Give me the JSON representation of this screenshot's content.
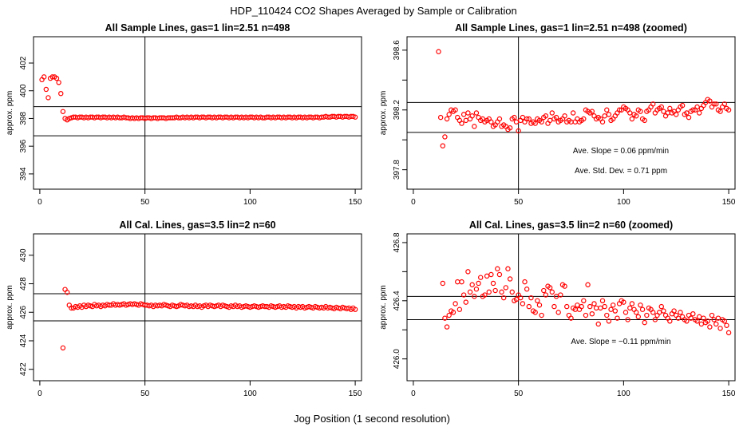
{
  "figure": {
    "title": "HDP_110424  CO2 Shapes Averaged by Sample or Calibration",
    "xlabel": "Jog Position (1 second resolution)"
  },
  "chart_data": [
    {
      "type": "scatter",
      "title": "All Sample Lines, gas=1 lin=2.51 n=498",
      "ylabel": "approx. ppm",
      "xlim": [
        -3,
        153
      ],
      "ylim": [
        392.9,
        403.9
      ],
      "xticks": [
        0,
        50,
        100,
        150
      ],
      "yticks": [
        394,
        396,
        398,
        400,
        402
      ],
      "vline_x": 50,
      "hlines": [
        398.85,
        396.75
      ],
      "marker_color": "#ff0000",
      "x": [
        1,
        2,
        3,
        4,
        5,
        6,
        7,
        8,
        9,
        10,
        11,
        12,
        13,
        14,
        15,
        16,
        17,
        18,
        19,
        20,
        21,
        22,
        23,
        24,
        25,
        26,
        27,
        28,
        29,
        30,
        31,
        32,
        33,
        34,
        35,
        36,
        37,
        38,
        39,
        40,
        41,
        42,
        43,
        44,
        45,
        46,
        47,
        48,
        49,
        50,
        51,
        52,
        53,
        54,
        55,
        56,
        57,
        58,
        59,
        60,
        61,
        62,
        63,
        64,
        65,
        66,
        67,
        68,
        69,
        70,
        71,
        72,
        73,
        74,
        75,
        76,
        77,
        78,
        79,
        80,
        81,
        82,
        83,
        84,
        85,
        86,
        87,
        88,
        89,
        90,
        91,
        92,
        93,
        94,
        95,
        96,
        97,
        98,
        99,
        100,
        101,
        102,
        103,
        104,
        105,
        106,
        107,
        108,
        109,
        110,
        111,
        112,
        113,
        114,
        115,
        116,
        117,
        118,
        119,
        120,
        121,
        122,
        123,
        124,
        125,
        126,
        127,
        128,
        129,
        130,
        131,
        132,
        133,
        134,
        135,
        136,
        137,
        138,
        139,
        140,
        141,
        142,
        143,
        144,
        145,
        146,
        147,
        148,
        149,
        150
      ],
      "y": [
        400.8,
        401.0,
        400.1,
        399.5,
        400.9,
        401.0,
        401.0,
        400.9,
        400.6,
        399.8,
        398.5,
        398.0,
        397.9,
        398.0,
        398.05,
        398.1,
        398.1,
        398.05,
        398.1,
        398.1,
        398.05,
        398.1,
        398.05,
        398.1,
        398.1,
        398.05,
        398.1,
        398.1,
        398.05,
        398.1,
        398.1,
        398.05,
        398.1,
        398.05,
        398.1,
        398.05,
        398.1,
        398.05,
        398.05,
        398.1,
        398.05,
        398.05,
        398.0,
        398.05,
        398.0,
        398.05,
        398.0,
        398.05,
        398.05,
        398.0,
        398.05,
        398.05,
        398.0,
        398.05,
        398.05,
        398.0,
        398.05,
        398.05,
        398.05,
        398.0,
        398.05,
        398.05,
        398.05,
        398.05,
        398.1,
        398.05,
        398.05,
        398.1,
        398.05,
        398.1,
        398.05,
        398.1,
        398.05,
        398.1,
        398.1,
        398.05,
        398.1,
        398.1,
        398.05,
        398.1,
        398.1,
        398.05,
        398.1,
        398.05,
        398.1,
        398.1,
        398.05,
        398.1,
        398.1,
        398.05,
        398.1,
        398.05,
        398.1,
        398.1,
        398.05,
        398.1,
        398.05,
        398.1,
        398.05,
        398.1,
        398.1,
        398.05,
        398.1,
        398.05,
        398.1,
        398.05,
        398.05,
        398.1,
        398.1,
        398.05,
        398.1,
        398.05,
        398.1,
        398.1,
        398.05,
        398.1,
        398.05,
        398.1,
        398.1,
        398.05,
        398.1,
        398.05,
        398.1,
        398.1,
        398.05,
        398.1,
        398.05,
        398.1,
        398.1,
        398.05,
        398.1,
        398.1,
        398.05,
        398.1,
        398.1,
        398.15,
        398.1,
        398.1,
        398.15,
        398.15,
        398.1,
        398.15,
        398.15,
        398.1,
        398.15,
        398.15,
        398.1,
        398.15,
        398.15,
        398.1
      ]
    },
    {
      "type": "scatter",
      "title": "All Sample Lines, gas=1 lin=2.51 n=498 (zoomed)",
      "ylabel": "approx. ppm",
      "xlim": [
        -3,
        153
      ],
      "ylim": [
        397.67,
        398.69
      ],
      "xticks": [
        0,
        50,
        100,
        150
      ],
      "yticks": [
        397.8,
        398.0,
        398.2,
        398.4,
        398.6
      ],
      "ytick_labels": [
        "397.8",
        "",
        "398.2",
        "",
        "398.6"
      ],
      "vline_x": 50,
      "hlines": [
        398.25,
        398.05
      ],
      "marker_color": "#ff0000",
      "annotations": [
        "Ave. Slope =  0.06  ppm/min",
        "Ave. Std. Dev. =  0.71  ppm"
      ],
      "x": [
        12,
        13,
        14,
        15,
        16,
        17,
        18,
        19,
        20,
        21,
        22,
        23,
        24,
        25,
        26,
        27,
        28,
        29,
        30,
        31,
        32,
        33,
        34,
        35,
        36,
        37,
        38,
        39,
        40,
        41,
        42,
        43,
        44,
        45,
        46,
        47,
        48,
        49,
        50,
        51,
        52,
        53,
        54,
        55,
        56,
        57,
        58,
        59,
        60,
        61,
        62,
        63,
        64,
        65,
        66,
        67,
        68,
        69,
        70,
        71,
        72,
        73,
        74,
        75,
        76,
        77,
        78,
        79,
        80,
        81,
        82,
        83,
        84,
        85,
        86,
        87,
        88,
        89,
        90,
        91,
        92,
        93,
        94,
        95,
        96,
        97,
        98,
        99,
        100,
        101,
        102,
        103,
        104,
        105,
        106,
        107,
        108,
        109,
        110,
        111,
        112,
        113,
        114,
        115,
        116,
        117,
        118,
        119,
        120,
        121,
        122,
        123,
        124,
        125,
        126,
        127,
        128,
        129,
        130,
        131,
        132,
        133,
        134,
        135,
        136,
        137,
        138,
        139,
        140,
        141,
        142,
        143,
        144,
        145,
        146,
        147,
        148,
        149,
        150
      ],
      "y": [
        398.59,
        398.15,
        397.96,
        398.02,
        398.14,
        398.17,
        398.2,
        398.19,
        398.2,
        398.15,
        398.13,
        398.11,
        398.17,
        398.13,
        398.18,
        398.14,
        398.16,
        398.09,
        398.18,
        398.15,
        398.13,
        398.14,
        398.12,
        398.13,
        398.14,
        398.12,
        398.09,
        398.1,
        398.12,
        398.14,
        398.09,
        398.1,
        398.09,
        398.07,
        398.08,
        398.14,
        398.15,
        398.12,
        398.06,
        398.13,
        398.15,
        398.12,
        398.14,
        398.14,
        398.11,
        398.12,
        398.11,
        398.14,
        398.13,
        398.12,
        398.15,
        398.16,
        398.11,
        398.13,
        398.18,
        398.14,
        398.15,
        398.12,
        398.13,
        398.14,
        398.16,
        398.12,
        398.13,
        398.12,
        398.18,
        398.12,
        398.14,
        398.12,
        398.13,
        398.14,
        398.2,
        398.19,
        398.18,
        398.19,
        398.16,
        398.14,
        398.15,
        398.14,
        398.12,
        398.16,
        398.2,
        398.17,
        398.13,
        398.14,
        398.16,
        398.18,
        398.2,
        398.2,
        398.22,
        398.21,
        398.2,
        398.18,
        398.14,
        398.17,
        398.16,
        398.2,
        398.19,
        398.14,
        398.13,
        398.19,
        398.2,
        398.22,
        398.24,
        398.18,
        398.2,
        398.21,
        398.22,
        398.19,
        398.16,
        398.18,
        398.21,
        398.18,
        398.19,
        398.17,
        398.2,
        398.22,
        398.23,
        398.17,
        398.18,
        398.15,
        398.19,
        398.2,
        398.2,
        398.22,
        398.18,
        398.21,
        398.23,
        398.25,
        398.27,
        398.26,
        398.22,
        398.24,
        398.24,
        398.2,
        398.19,
        398.22,
        398.24,
        398.21,
        398.2
      ]
    },
    {
      "type": "scatter",
      "title": "All Cal. Lines, gas=3.5 lin=2 n=60",
      "ylabel": "approx. ppm",
      "xlim": [
        -3,
        153
      ],
      "ylim": [
        421.2,
        431.5
      ],
      "xticks": [
        0,
        50,
        100,
        150
      ],
      "yticks": [
        422,
        424,
        426,
        428,
        430
      ],
      "vline_x": 50,
      "hlines": [
        427.3,
        425.4
      ],
      "marker_color": "#ff0000",
      "x": [
        11,
        12,
        13,
        14,
        15,
        16,
        17,
        18,
        19,
        20,
        21,
        22,
        23,
        24,
        25,
        26,
        27,
        28,
        29,
        30,
        31,
        32,
        33,
        34,
        35,
        36,
        37,
        38,
        39,
        40,
        41,
        42,
        43,
        44,
        45,
        46,
        47,
        48,
        49,
        50,
        51,
        52,
        53,
        54,
        55,
        56,
        57,
        58,
        59,
        60,
        61,
        62,
        63,
        64,
        65,
        66,
        67,
        68,
        69,
        70,
        71,
        72,
        73,
        74,
        75,
        76,
        77,
        78,
        79,
        80,
        81,
        82,
        83,
        84,
        85,
        86,
        87,
        88,
        89,
        90,
        91,
        92,
        93,
        94,
        95,
        96,
        97,
        98,
        99,
        100,
        101,
        102,
        103,
        104,
        105,
        106,
        107,
        108,
        109,
        110,
        111,
        112,
        113,
        114,
        115,
        116,
        117,
        118,
        119,
        120,
        121,
        122,
        123,
        124,
        125,
        126,
        127,
        128,
        129,
        130,
        131,
        132,
        133,
        134,
        135,
        136,
        137,
        138,
        139,
        140,
        141,
        142,
        143,
        144,
        145,
        146,
        147,
        148,
        149,
        150
      ],
      "y": [
        423.5,
        427.6,
        427.4,
        426.5,
        426.3,
        426.3,
        426.4,
        426.35,
        426.45,
        426.35,
        426.5,
        426.4,
        426.5,
        426.45,
        426.4,
        426.55,
        426.45,
        426.5,
        426.4,
        426.5,
        426.45,
        426.55,
        426.5,
        426.5,
        426.6,
        426.5,
        426.55,
        426.5,
        426.55,
        426.6,
        426.5,
        426.55,
        426.6,
        426.55,
        426.6,
        426.55,
        426.5,
        426.6,
        426.55,
        426.5,
        426.5,
        426.45,
        426.5,
        426.4,
        426.5,
        426.45,
        426.5,
        426.45,
        426.55,
        426.5,
        426.45,
        426.4,
        426.5,
        426.45,
        426.4,
        426.45,
        426.55,
        426.5,
        426.45,
        426.5,
        426.4,
        426.45,
        426.4,
        426.5,
        426.4,
        426.45,
        426.35,
        426.45,
        426.5,
        426.4,
        426.5,
        426.45,
        426.4,
        426.45,
        426.5,
        426.4,
        426.5,
        426.45,
        426.4,
        426.35,
        426.45,
        426.4,
        426.5,
        426.4,
        426.45,
        426.35,
        426.4,
        426.45,
        426.4,
        426.35,
        426.4,
        426.45,
        426.4,
        426.35,
        426.4,
        426.45,
        426.4,
        426.4,
        426.35,
        426.45,
        426.4,
        426.35,
        426.4,
        426.45,
        426.35,
        426.4,
        426.35,
        426.45,
        426.4,
        426.35,
        426.4,
        426.3,
        426.4,
        426.35,
        426.4,
        426.3,
        426.35,
        426.4,
        426.35,
        426.3,
        426.4,
        426.35,
        426.3,
        426.35,
        426.3,
        426.4,
        426.3,
        426.35,
        426.3,
        426.25,
        426.35,
        426.3,
        426.25,
        426.35,
        426.3,
        426.25,
        426.3,
        426.2,
        426.3,
        426.2
      ]
    },
    {
      "type": "scatter",
      "title": "All Cal. Lines, gas=3.5 lin=2 n=60 (zoomed)",
      "ylabel": "approx. ppm",
      "xlim": [
        -3,
        153
      ],
      "ylim": [
        425.85,
        426.86
      ],
      "xticks": [
        0,
        50,
        100,
        150
      ],
      "yticks": [
        426.0,
        426.2,
        426.4,
        426.6,
        426.8
      ],
      "ytick_labels": [
        "426.0",
        "",
        "426.4",
        "",
        "426.8"
      ],
      "vline_x": 50,
      "hlines": [
        426.43,
        426.27
      ],
      "marker_color": "#ff0000",
      "annotations": [
        "Ave. Slope =  −0.11  ppm/min"
      ],
      "x": [
        14,
        15,
        16,
        17,
        18,
        19,
        20,
        21,
        22,
        23,
        24,
        25,
        26,
        27,
        28,
        29,
        30,
        31,
        32,
        33,
        34,
        35,
        36,
        37,
        38,
        39,
        40,
        41,
        42,
        43,
        44,
        45,
        46,
        47,
        48,
        49,
        50,
        51,
        52,
        53,
        54,
        55,
        56,
        57,
        58,
        59,
        60,
        61,
        62,
        63,
        64,
        65,
        66,
        67,
        68,
        69,
        70,
        71,
        72,
        73,
        74,
        75,
        76,
        77,
        78,
        79,
        80,
        81,
        82,
        83,
        84,
        85,
        86,
        87,
        88,
        89,
        90,
        91,
        92,
        93,
        94,
        95,
        96,
        97,
        98,
        99,
        100,
        101,
        102,
        103,
        104,
        105,
        106,
        107,
        108,
        109,
        110,
        111,
        112,
        113,
        114,
        115,
        116,
        117,
        118,
        119,
        120,
        121,
        122,
        123,
        124,
        125,
        126,
        127,
        128,
        129,
        130,
        131,
        132,
        133,
        134,
        135,
        136,
        137,
        138,
        139,
        140,
        141,
        142,
        143,
        144,
        145,
        146,
        147,
        148,
        149,
        150
      ],
      "y": [
        426.52,
        426.28,
        426.22,
        426.3,
        426.33,
        426.32,
        426.38,
        426.53,
        426.34,
        426.53,
        426.44,
        426.39,
        426.6,
        426.46,
        426.51,
        426.43,
        426.48,
        426.52,
        426.56,
        426.43,
        426.44,
        426.57,
        426.46,
        426.58,
        426.52,
        426.47,
        426.62,
        426.58,
        426.46,
        426.42,
        426.49,
        426.62,
        426.55,
        426.46,
        426.4,
        426.41,
        426.44,
        426.42,
        426.38,
        426.53,
        426.48,
        426.36,
        426.42,
        426.33,
        426.32,
        426.4,
        426.37,
        426.3,
        426.47,
        426.44,
        426.5,
        426.49,
        426.46,
        426.36,
        426.43,
        426.32,
        426.44,
        426.51,
        426.5,
        426.36,
        426.3,
        426.28,
        426.35,
        426.34,
        426.37,
        426.34,
        426.36,
        426.4,
        426.3,
        426.51,
        426.36,
        426.31,
        426.38,
        426.35,
        426.24,
        426.35,
        426.4,
        426.36,
        426.3,
        426.26,
        426.34,
        426.37,
        426.33,
        426.28,
        426.38,
        426.4,
        426.39,
        426.32,
        426.27,
        426.35,
        426.38,
        426.34,
        426.32,
        426.29,
        426.37,
        426.34,
        426.25,
        426.3,
        426.35,
        426.34,
        426.32,
        426.27,
        426.3,
        426.32,
        426.36,
        426.33,
        426.3,
        426.28,
        426.26,
        426.31,
        426.33,
        426.3,
        426.28,
        426.32,
        426.29,
        426.27,
        426.26,
        426.3,
        426.28,
        426.31,
        426.27,
        426.26,
        426.29,
        426.24,
        426.28,
        426.25,
        426.26,
        426.22,
        426.3,
        426.27,
        426.24,
        426.28,
        426.21,
        426.27,
        426.26,
        426.23,
        426.18
      ]
    }
  ]
}
